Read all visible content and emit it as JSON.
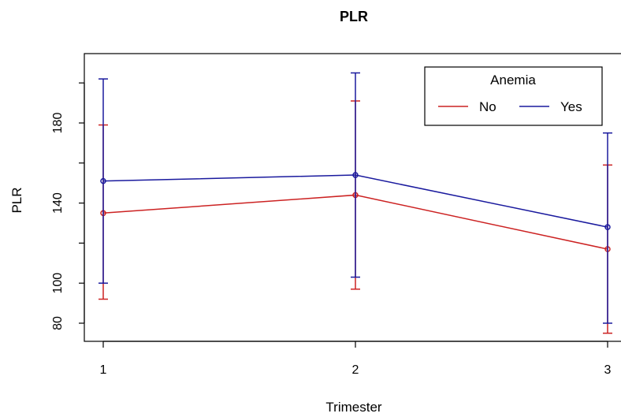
{
  "chart_data": {
    "type": "line",
    "title": "PLR",
    "xlabel": "Trimester",
    "ylabel": "PLR",
    "categories": [
      "1",
      "2",
      "3"
    ],
    "x": [
      1,
      2,
      3
    ],
    "xlim": [
      1,
      3
    ],
    "ylim": [
      75,
      205
    ],
    "y_ticks": [
      80,
      100,
      140,
      180
    ],
    "grid": false,
    "error_bars": true,
    "legend": {
      "title": "Anemia",
      "placement": "top-right"
    },
    "series": [
      {
        "name": "No",
        "color": "#cc2222",
        "values": [
          135,
          144,
          117
        ],
        "lower": [
          92,
          97,
          75
        ],
        "upper": [
          179,
          191,
          159
        ]
      },
      {
        "name": "Yes",
        "color": "#1a1a9e",
        "values": [
          151,
          154,
          128
        ],
        "lower": [
          100,
          103,
          80
        ],
        "upper": [
          202,
          205,
          175
        ]
      }
    ]
  }
}
